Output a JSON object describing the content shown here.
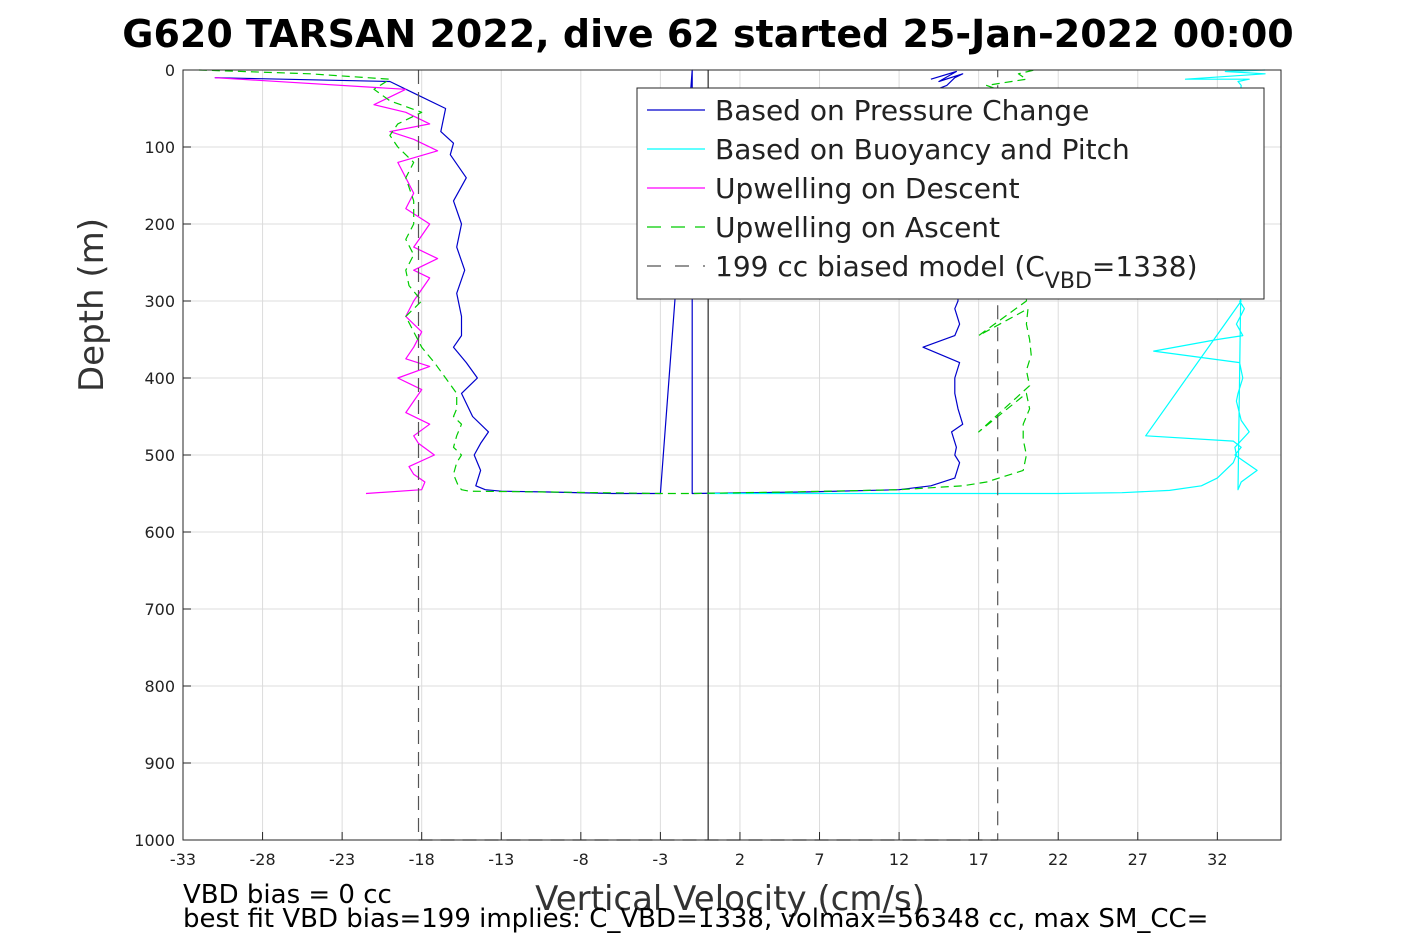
{
  "chart_data": {
    "type": "line",
    "title": "G620 TARSAN 2022, dive 62 started 25-Jan-2022 00:00",
    "xlabel": "Vertical Velocity (cm/s)",
    "ylabel": "Depth (m)",
    "xlim": [
      -33,
      36
    ],
    "ylim": [
      0,
      1000
    ],
    "y_reversed": true,
    "grid": true,
    "xticks": [
      -33,
      -28,
      -23,
      -18,
      -13,
      -8,
      -3,
      2,
      7,
      12,
      17,
      22,
      27,
      32
    ],
    "yticks": [
      0,
      100,
      200,
      300,
      400,
      500,
      600,
      700,
      800,
      900,
      1000
    ],
    "legend_position": "top-right",
    "series": [
      {
        "name": "Based on Pressure Change",
        "color": "#0000cc",
        "dash": "solid",
        "x": [
          -31,
          -20,
          -18.5,
          -16.5,
          -16.8,
          -16,
          -16.2,
          -15.2,
          -16,
          -15.5,
          -15.8,
          -15.3,
          -15.8,
          -15.5,
          -15.5,
          -16,
          -15.2,
          -14.5,
          -15.5,
          -14.8,
          -13.8,
          -14.3,
          -14.7,
          -14.3,
          -14.6,
          -14,
          -13,
          -10,
          -6,
          -3,
          -1,
          -1,
          6,
          12,
          14,
          15.5,
          15.8,
          15.5,
          15.6,
          15.3,
          16,
          15.7,
          15.5,
          15.5,
          15.8,
          13.5,
          15.5,
          15.8,
          15.5,
          15.7,
          15.6,
          15.7,
          15.5,
          12.5,
          15,
          15.5,
          16,
          14.5,
          15.6,
          14
        ],
        "y": [
          10,
          15,
          30,
          50,
          80,
          95,
          110,
          140,
          170,
          200,
          230,
          260,
          290,
          320,
          345,
          360,
          380,
          400,
          420,
          450,
          470,
          485,
          500,
          520,
          540,
          545,
          547,
          548,
          550,
          550,
          0,
          550,
          548,
          545,
          540,
          530,
          510,
          500,
          490,
          470,
          460,
          440,
          420,
          400,
          380,
          360,
          345,
          330,
          310,
          300,
          100,
          80,
          60,
          40,
          20,
          10,
          5,
          15,
          2,
          12
        ]
      },
      {
        "name": "Based on Buoyancy and Pitch",
        "color": "#00ffff",
        "dash": "solid",
        "x": [
          0,
          8,
          15,
          22,
          26,
          29,
          31,
          32,
          33,
          33.2,
          33.1,
          34,
          33.5,
          33.2,
          33.3,
          33.6,
          33.4,
          28,
          32,
          33.6,
          33.2,
          33.7,
          33.4,
          33.5,
          27.5,
          33,
          33.5,
          33.1,
          34.5,
          33.5,
          33.3,
          33.6,
          33.4,
          33.2,
          33.4,
          33.5,
          33.3,
          34,
          30,
          35,
          32.5,
          35
        ],
        "y": [
          550,
          550,
          550,
          550,
          549,
          546,
          540,
          530,
          510,
          500,
          490,
          470,
          455,
          430,
          420,
          400,
          380,
          365,
          350,
          345,
          330,
          310,
          300,
          300,
          475,
          482,
          490,
          500,
          520,
          535,
          545,
          100,
          80,
          60,
          40,
          20,
          15,
          12,
          12,
          5,
          2,
          0
        ]
      },
      {
        "name": "Upwelling on Descent",
        "color": "#ff00ff",
        "dash": "solid",
        "x": [
          -31,
          -19,
          -21,
          -19,
          -17.5,
          -20,
          -18.5,
          -17,
          -19.5,
          -19,
          -18.5,
          -19,
          -17.5,
          -18,
          -18.5,
          -17,
          -18.5,
          -17.5,
          -18,
          -18.5,
          -19,
          -18,
          -18.5,
          -19,
          -17.5,
          -19.5,
          -18,
          -18.5,
          -19,
          -17.5,
          -18.5,
          -18.2,
          -17.2,
          -18.8,
          -18.5,
          -17.8,
          -18,
          -21.5
        ],
        "y": [
          10,
          25,
          45,
          55,
          70,
          80,
          90,
          105,
          120,
          140,
          160,
          180,
          200,
          215,
          230,
          245,
          260,
          270,
          285,
          300,
          320,
          340,
          360,
          375,
          385,
          400,
          415,
          430,
          445,
          460,
          475,
          485,
          500,
          515,
          525,
          535,
          545,
          550
        ]
      },
      {
        "name": "Upwelling on Ascent",
        "color": "#00cc00",
        "dash": "dashed",
        "x": [
          -32,
          -25,
          -20,
          -21,
          -20,
          -18,
          -19.5,
          -20,
          -19.5,
          -18.5,
          -19,
          -18.5,
          -18.5,
          -19,
          -18.5,
          -19,
          -18.8,
          -18,
          -19,
          -18.5,
          -18,
          -17.2,
          -16.5,
          -15.8,
          -15.8,
          -16,
          -15.5,
          -15.8,
          -16,
          -15.5,
          -15.8,
          -16,
          -15.7,
          -15.5,
          -15,
          -10,
          -3,
          -1,
          5,
          12,
          16,
          17.5,
          19.8,
          20,
          19.8,
          19.8,
          20.2,
          20,
          17,
          20.2,
          20,
          20.3,
          20.2,
          20,
          20.1,
          17,
          20,
          20.5,
          20.8,
          20.5,
          20.2,
          17.5,
          20,
          19.5,
          20.5
        ],
        "y": [
          0,
          5,
          12,
          25,
          40,
          55,
          70,
          85,
          100,
          120,
          140,
          170,
          200,
          220,
          240,
          260,
          280,
          300,
          320,
          340,
          360,
          380,
          400,
          420,
          440,
          450,
          460,
          475,
          490,
          500,
          510,
          525,
          540,
          545,
          547,
          548,
          550,
          550,
          548,
          545,
          540,
          535,
          520,
          500,
          480,
          460,
          440,
          420,
          470,
          410,
          390,
          370,
          350,
          330,
          310,
          345,
          300,
          100,
          80,
          60,
          40,
          20,
          12,
          5,
          0
        ]
      },
      {
        "name": "199 cc biased model (C_VBD=1338)",
        "color": "#555555",
        "dash": "dashed",
        "x": [
          -18.2,
          -18.2,
          18.2,
          18.2
        ],
        "y": [
          0,
          1000,
          1000,
          0
        ]
      }
    ],
    "legend_entries": [
      {
        "label": "Based on Pressure Change",
        "color": "#0000cc",
        "dash": "solid"
      },
      {
        "label": "Based on Buoyancy and Pitch",
        "color": "#00ffff",
        "dash": "solid"
      },
      {
        "label": "Upwelling on Descent",
        "color": "#ff00ff",
        "dash": "solid"
      },
      {
        "label": "Upwelling on Ascent",
        "color": "#00cc00",
        "dash": "dashed"
      },
      {
        "label_main": "199 cc biased model (C",
        "label_sub": "VBD",
        "label_end": "=1338)",
        "color": "#555555",
        "dash": "dashed"
      }
    ],
    "annotations": [
      "VBD bias = 0 cc",
      "best fit VBD bias=199 implies: C_VBD=1338, volmax=56348 cc, max SM_CC="
    ]
  }
}
